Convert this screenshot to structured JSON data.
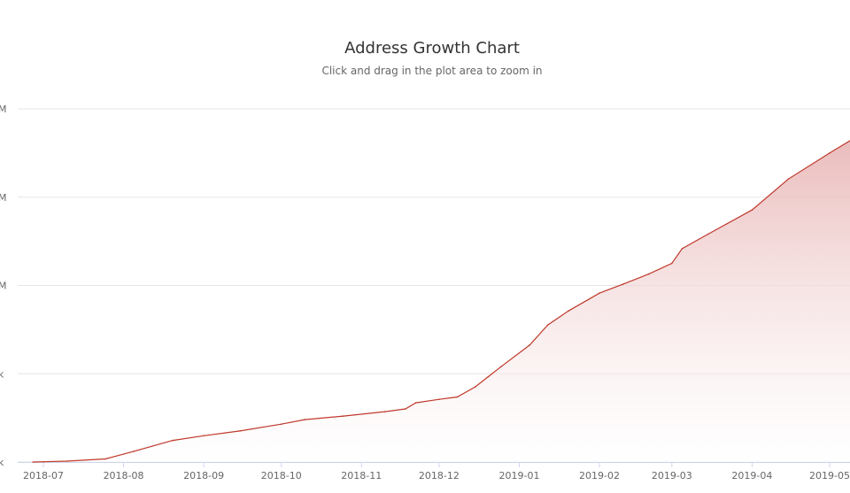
{
  "chart_data": {
    "type": "area",
    "title": "Address Growth Chart",
    "subtitle": "Click and drag in the plot area to zoom in",
    "x_tick_labels": [
      "2018-07",
      "2018-08",
      "2018-09",
      "2018-10",
      "2018-11",
      "2018-12",
      "2019-01",
      "2019-02",
      "2019-03",
      "2019-04",
      "2019-05"
    ],
    "y_tick_labels": [
      "k",
      "k",
      "M",
      "M",
      "M"
    ],
    "series": [
      {
        "x": [
          "2018-06-27",
          "2018-07-01",
          "2018-07-10",
          "2018-07-25",
          "2018-08-05",
          "2018-08-20",
          "2018-09-01",
          "2018-09-15",
          "2018-10-01",
          "2018-10-10",
          "2018-10-25",
          "2018-11-10",
          "2018-11-18",
          "2018-11-22",
          "2018-12-01",
          "2018-12-08",
          "2018-12-15",
          "2018-12-20",
          "2018-12-25",
          "2019-01-05",
          "2019-01-12",
          "2019-01-20",
          "2019-02-01",
          "2019-02-10",
          "2019-02-20",
          "2019-03-01",
          "2019-03-05",
          "2019-03-15",
          "2019-04-01",
          "2019-04-15",
          "2019-05-01",
          "2019-05-10"
        ],
        "y": [
          0,
          0.2,
          0.8,
          2.7,
          9.3,
          18.7,
          22.8,
          26.9,
          32.8,
          36.7,
          39.8,
          43.6,
          46.0,
          51.3,
          54.3,
          56.4,
          65.1,
          73.9,
          82.7,
          101.3,
          118.7,
          130.9,
          146.3,
          154.0,
          162.8,
          172.2,
          185.0,
          197.5,
          218.4,
          245.2,
          267.7,
          280.0
        ],
        "color": "#c0392b"
      }
    ],
    "y_gridlines": [
      0,
      1,
      2,
      3,
      4
    ],
    "grid": true,
    "legend": "none",
    "colors": {
      "line": "#c0392b",
      "fill_top": "#e8b4b4",
      "grid": "#e6e6e6",
      "axis": "#ccd6eb"
    }
  }
}
